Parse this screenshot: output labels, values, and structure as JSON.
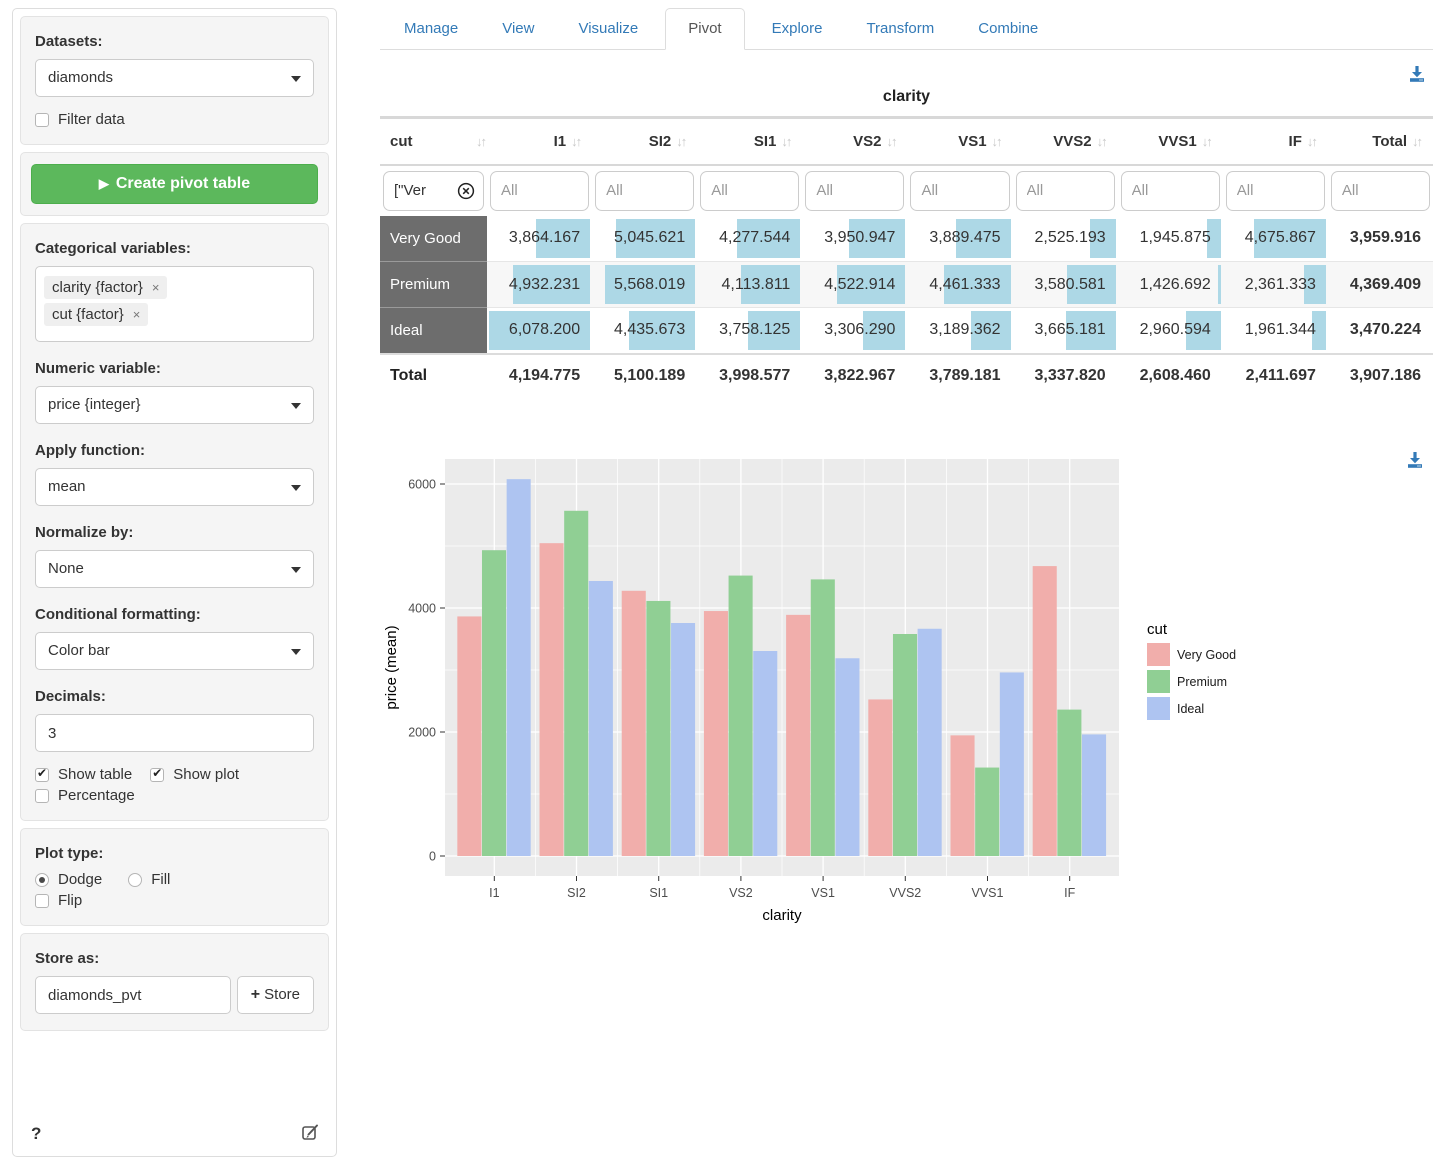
{
  "sidebar": {
    "datasets_label": "Datasets:",
    "dataset_value": "diamonds",
    "filter_label": "Filter data",
    "create_button_label": "Create pivot table",
    "categorical_label": "Categorical variables:",
    "categorical_items": [
      "clarity {factor}",
      "cut {factor}"
    ],
    "tag_remove": "×",
    "numeric_label": "Numeric variable:",
    "numeric_value": "price {integer}",
    "apply_label": "Apply function:",
    "apply_value": "mean",
    "normalize_label": "Normalize by:",
    "normalize_value": "None",
    "cond_label": "Conditional formatting:",
    "cond_value": "Color bar",
    "decimals_label": "Decimals:",
    "decimals_value": "3",
    "show_table_label": "Show table",
    "show_plot_label": "Show plot",
    "percentage_label": "Percentage",
    "plot_type_label": "Plot type:",
    "dodge_label": "Dodge",
    "fill_label": "Fill",
    "flip_label": "Flip",
    "store_label": "Store as:",
    "store_value": "diamonds_pvt",
    "store_button_label": "Store",
    "help_label": "?"
  },
  "tabs": [
    "Manage",
    "View",
    "Visualize",
    "Pivot",
    "Explore",
    "Transform",
    "Combine"
  ],
  "active_tab": "Pivot",
  "pivot": {
    "group_label": "clarity",
    "row_dim_label": "cut",
    "columns": [
      "I1",
      "SI2",
      "SI1",
      "VS2",
      "VS1",
      "VVS2",
      "VVS1",
      "IF",
      "Total"
    ],
    "filter_value": "[\"Ver",
    "filter_placeholder": "All",
    "bar_color": "#ADD8E6",
    "bar_range": {
      "min": 1426.692,
      "max": 6078.2
    },
    "rows": [
      {
        "label": "Very Good",
        "values": [
          3864.167,
          5045.621,
          4277.544,
          3950.947,
          3889.475,
          2525.193,
          1945.875,
          4675.867
        ],
        "display": [
          "3,864.167",
          "5,045.621",
          "4,277.544",
          "3,950.947",
          "3,889.475",
          "2,525.193",
          "1,945.875",
          "4,675.867"
        ],
        "total": "3,959.916"
      },
      {
        "label": "Premium",
        "values": [
          4932.231,
          5568.019,
          4113.811,
          4522.914,
          4461.333,
          3580.581,
          1426.692,
          2361.333
        ],
        "display": [
          "4,932.231",
          "5,568.019",
          "4,113.811",
          "4,522.914",
          "4,461.333",
          "3,580.581",
          "1,426.692",
          "2,361.333"
        ],
        "total": "4,369.409"
      },
      {
        "label": "Ideal",
        "values": [
          6078.2,
          4435.673,
          3758.125,
          3306.29,
          3189.362,
          3665.181,
          2960.594,
          1961.344
        ],
        "display": [
          "6,078.200",
          "4,435.673",
          "3,758.125",
          "3,306.290",
          "3,189.362",
          "3,665.181",
          "2,960.594",
          "1,961.344"
        ],
        "total": "3,470.224"
      }
    ],
    "total_row": {
      "label": "Total",
      "display": [
        "4,194.775",
        "5,100.189",
        "3,998.577",
        "3,822.967",
        "3,789.181",
        "3,337.820",
        "2,608.460",
        "2,411.697"
      ],
      "total": "3,907.186"
    }
  },
  "chart_data": {
    "type": "bar",
    "title": "",
    "categories": [
      "I1",
      "SI2",
      "SI1",
      "VS2",
      "VS1",
      "VVS2",
      "VVS1",
      "IF"
    ],
    "series": [
      {
        "name": "Very Good",
        "color": "#F1AEAB",
        "values": [
          3864.167,
          5045.621,
          4277.544,
          3950.947,
          3889.475,
          2525.193,
          1945.875,
          4675.867
        ]
      },
      {
        "name": "Premium",
        "color": "#90CF94",
        "values": [
          4932.231,
          5568.019,
          4113.811,
          4522.914,
          4461.333,
          3580.581,
          1426.692,
          2361.333
        ]
      },
      {
        "name": "Ideal",
        "color": "#AEC4F1",
        "values": [
          6078.2,
          4435.673,
          3758.125,
          3306.29,
          3189.362,
          3665.181,
          2960.594,
          1961.344
        ]
      }
    ],
    "xlabel": "clarity",
    "ylabel": "price (mean)",
    "yticks": [
      0,
      2000,
      4000,
      6000
    ],
    "yminor": [
      1000,
      3000,
      5000
    ],
    "ylim": [
      -320,
      6400
    ],
    "legend_title": "cut",
    "legend_position": "right",
    "grid": true,
    "panel_bg": "#EBEBEB"
  },
  "colors": {
    "link_blue": "#337ab7",
    "button_green": "#5cb85c",
    "row_header_gray": "#6d6d6d",
    "tick_label": "#4d4d4d"
  }
}
